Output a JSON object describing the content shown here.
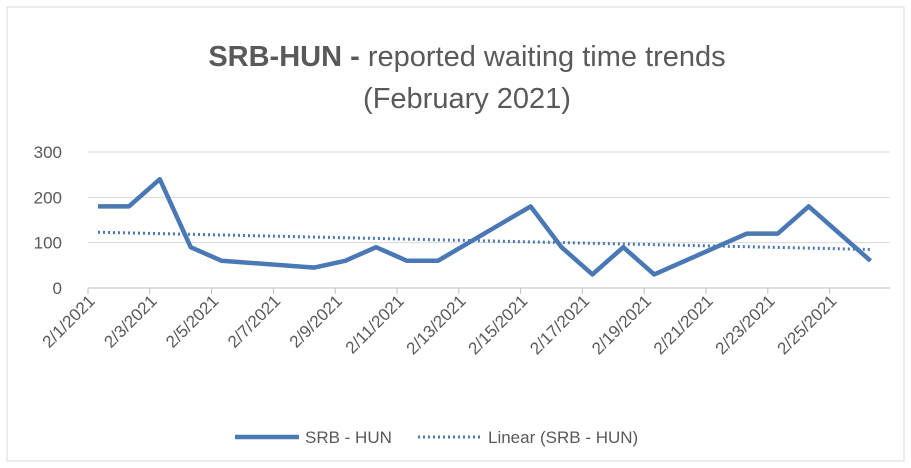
{
  "chart_data": {
    "type": "line",
    "title": {
      "bold": "SRB-HUN -",
      "text": "reported waiting time trends",
      "line2": "(February 2021)"
    },
    "xticks": [
      "2/1/2021",
      "2/3/2021",
      "2/5/2021",
      "2/7/2021",
      "2/9/2021",
      "2/11/2021",
      "2/13/2021",
      "2/15/2021",
      "2/17/2021",
      "2/19/2021",
      "2/21/2021",
      "2/23/2021",
      "2/25/2021"
    ],
    "ylim": [
      0,
      300
    ],
    "yticks": [
      0,
      100,
      200,
      300
    ],
    "grid": true,
    "legend": "bottom",
    "series": [
      {
        "name": "SRB - HUN",
        "color": "#4a78b5",
        "style": "solid",
        "x": [
          "2/1/2021",
          "2/2/2021",
          "2/3/2021",
          "2/4/2021",
          "2/5/2021",
          "2/8/2021",
          "2/9/2021",
          "2/10/2021",
          "2/11/2021",
          "2/12/2021",
          "2/15/2021",
          "2/16/2021",
          "2/17/2021",
          "2/18/2021",
          "2/19/2021",
          "2/22/2021",
          "2/23/2021",
          "2/24/2021",
          "2/26/2021"
        ],
        "values": [
          180,
          180,
          240,
          90,
          60,
          45,
          60,
          90,
          60,
          60,
          180,
          90,
          30,
          90,
          30,
          120,
          120,
          180,
          60
        ]
      },
      {
        "name": "Linear (SRB - HUN)",
        "color": "#4a78b5",
        "style": "dotted",
        "x": [
          "2/1/2021",
          "2/26/2021"
        ],
        "values": [
          123,
          85
        ]
      }
    ]
  }
}
